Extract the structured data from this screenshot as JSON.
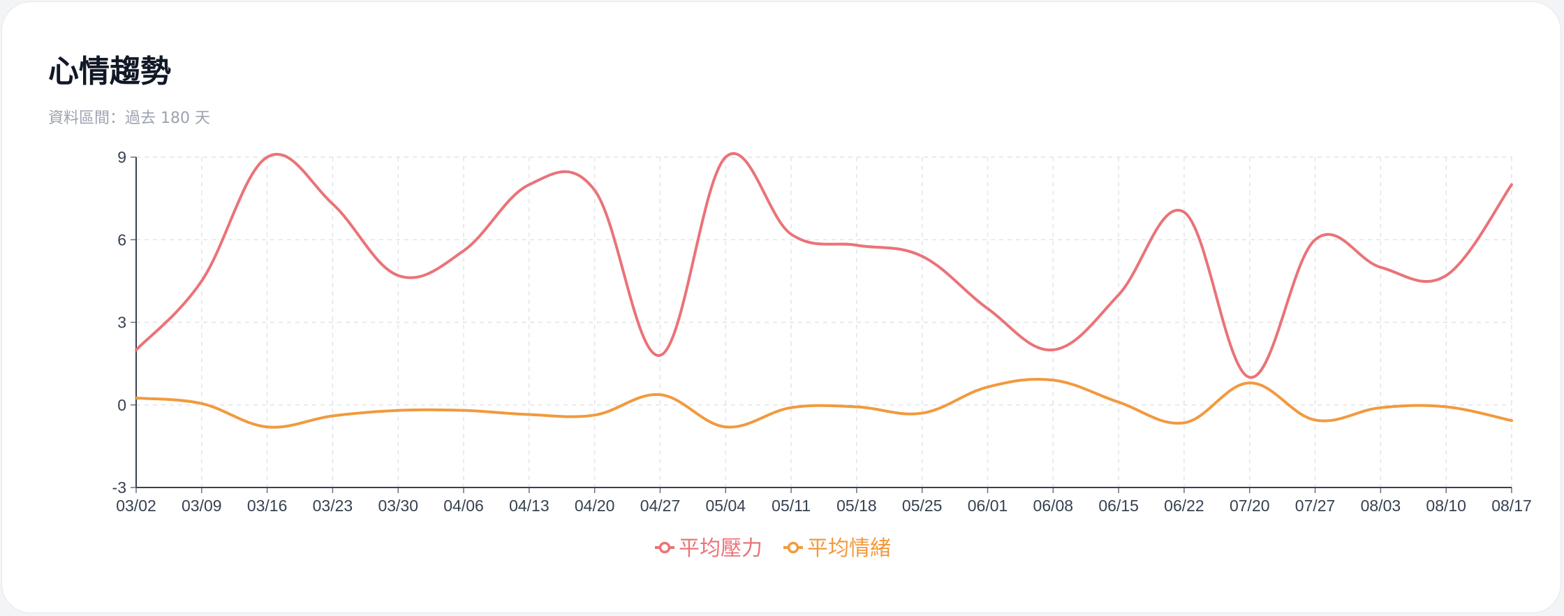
{
  "header": {
    "title": "心情趨勢",
    "subtitle": "資料區間：過去 180 天"
  },
  "chart_data": {
    "type": "line",
    "x": [
      "03/02",
      "03/09",
      "03/16",
      "03/23",
      "03/30",
      "04/06",
      "04/13",
      "04/20",
      "04/27",
      "05/04",
      "05/11",
      "05/18",
      "05/25",
      "06/01",
      "06/08",
      "06/15",
      "06/22",
      "07/20",
      "07/27",
      "08/03",
      "08/10",
      "08/17"
    ],
    "ylim": [
      -3,
      9
    ],
    "yticks": [
      -3,
      0,
      3,
      6,
      9
    ],
    "grid": true,
    "legend": "bottom-center",
    "series": [
      {
        "name": "平均壓力",
        "color": "#ea7378",
        "values": [
          2.0,
          4.5,
          9.0,
          7.3,
          4.7,
          5.6,
          8.0,
          7.8,
          1.8,
          9.0,
          6.2,
          5.8,
          5.4,
          3.5,
          2.0,
          4.0,
          7.0,
          1.0,
          6.0,
          5.0,
          4.7,
          8.0
        ]
      },
      {
        "name": "平均情緒",
        "color": "#f19a3e",
        "values": [
          0.25,
          0.05,
          -0.8,
          -0.4,
          -0.2,
          -0.2,
          -0.35,
          -0.37,
          0.37,
          -0.8,
          -0.1,
          -0.07,
          -0.3,
          0.65,
          0.9,
          0.1,
          -0.65,
          0.8,
          -0.55,
          -0.1,
          -0.07,
          -0.57
        ]
      }
    ]
  }
}
